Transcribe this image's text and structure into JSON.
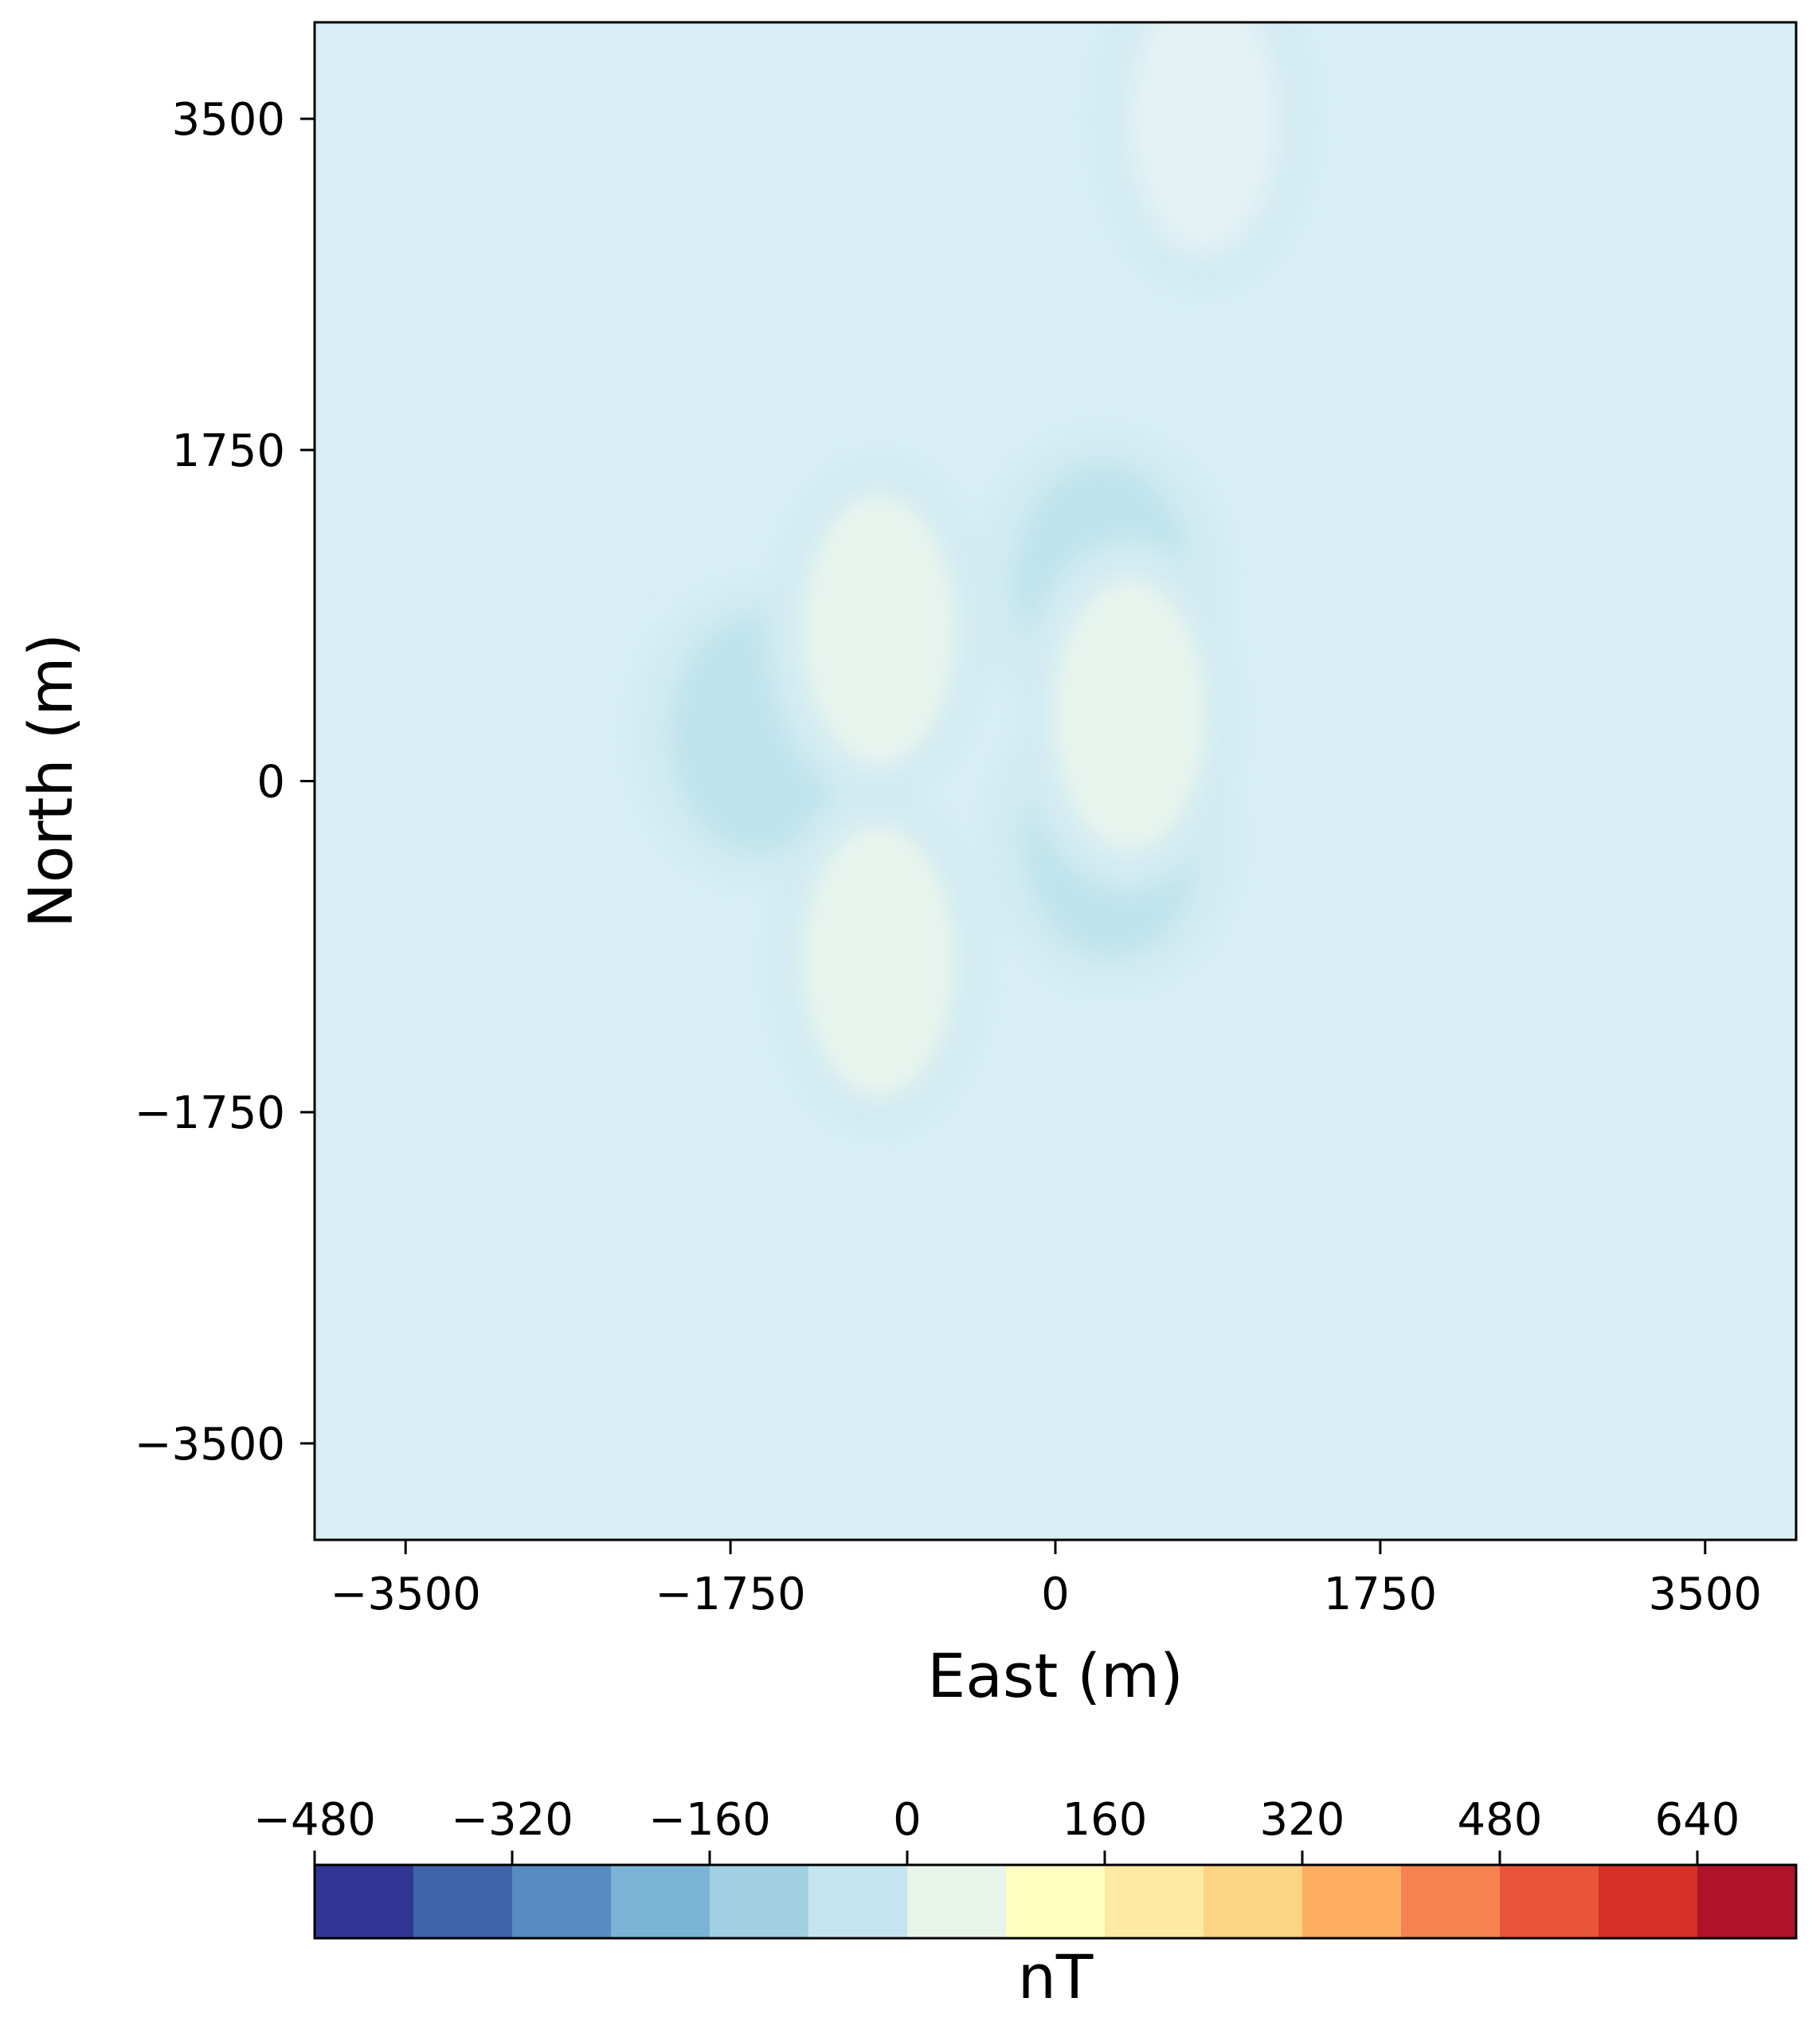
{
  "chart_data": {
    "type": "heatmap",
    "title": "",
    "xlabel": "East (m)",
    "ylabel": "North (m)",
    "xlim": [
      -3990,
      3990
    ],
    "ylim": [
      -4010,
      4010
    ],
    "xticks": [
      -3500,
      -1750,
      0,
      1750,
      3500
    ],
    "yticks": [
      -3500,
      -1750,
      0,
      1750,
      3500
    ],
    "xtick_labels": [
      "−3500",
      "−1750",
      "0",
      "1750",
      "3500"
    ],
    "ytick_labels": [
      "3500",
      "1750",
      "0",
      "−1750",
      "−3500"
    ],
    "grid": false,
    "background_level_nT": -40,
    "field_features": [
      {
        "kind": "low",
        "east": -1600,
        "north": 250,
        "value": -95
      },
      {
        "kind": "low",
        "east": 300,
        "north": -300,
        "value": -90
      },
      {
        "kind": "low",
        "east": 250,
        "north": 1050,
        "value": -75
      },
      {
        "kind": "high",
        "east": -950,
        "north": 800,
        "value": 25
      },
      {
        "kind": "high",
        "east": -950,
        "north": -950,
        "value": 25
      },
      {
        "kind": "high",
        "east": 400,
        "north": 350,
        "value": 5
      },
      {
        "kind": "high",
        "east": 800,
        "north": 3500,
        "value": -5
      }
    ],
    "colorbar": {
      "label": "nT",
      "orientation": "horizontal",
      "ticks": [
        -480,
        -320,
        -160,
        0,
        160,
        320,
        480,
        640
      ],
      "tick_labels": [
        "−480",
        "−320",
        "−160",
        "0",
        "160",
        "320",
        "480",
        "640"
      ],
      "levels": [
        -480,
        -400,
        -320,
        -240,
        -160,
        -80,
        0,
        80,
        160,
        240,
        320,
        400,
        480,
        560,
        640,
        720
      ],
      "colors": [
        "#313695",
        "#4064aa",
        "#588bbf",
        "#7ab3d5",
        "#a1d0e3",
        "#c4e5ef",
        "#e7f4ea",
        "#ffffc0",
        "#feeaa1",
        "#fdd384",
        "#fdae61",
        "#f6834f",
        "#e85538",
        "#d52f27",
        "#b0122a"
      ]
    }
  }
}
